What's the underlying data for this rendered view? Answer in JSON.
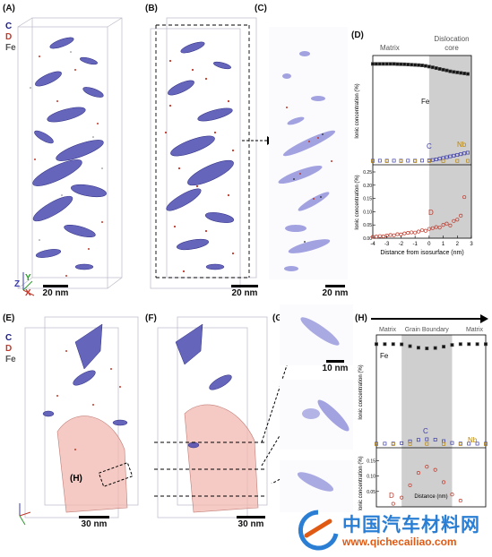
{
  "panels": {
    "A": "(A)",
    "B": "(B)",
    "C": "(C)",
    "D": "(D)",
    "E": "(E)",
    "F": "(F)",
    "G": "(G)",
    "H": "(H)"
  },
  "legend": {
    "c": "C",
    "d": "D",
    "fe": "Fe"
  },
  "axes_triad": {
    "z": "Z",
    "x": "X",
    "y": "Y"
  },
  "scale_bars": {
    "a": "20 nm",
    "b": "20 nm",
    "c": "20 nm",
    "e": "30 nm",
    "f": "30 nm",
    "g": "10 nm"
  },
  "roi_label": "(H)",
  "colors": {
    "carbon": "#3c3ca6",
    "deuterium": "#c0392b",
    "iron": "#444444",
    "niobium": "#b8860b",
    "core_shade": "#cfcfcf",
    "gb_shade": "#cfcfcf"
  },
  "chart_data": [
    {
      "type": "scatter",
      "panel": "D",
      "region_labels": [
        "Matrix",
        "Dislocation core"
      ],
      "top": {
        "ylabel": "Ionic concentration (%)",
        "series": [
          {
            "name": "Fe",
            "x": [
              -4,
              -3.75,
              -3.5,
              -3.25,
              -3,
              -2.75,
              -2.5,
              -2.25,
              -2,
              -1.75,
              -1.5,
              -1.25,
              -1,
              -0.75,
              -0.5,
              -0.25,
              0,
              0.25,
              0.5,
              0.75,
              1,
              1.25,
              1.5,
              1.75,
              2,
              2.25,
              2.5,
              2.75
            ],
            "y": [
              97,
              97,
              97,
              97,
              97,
              97,
              97,
              96.8,
              96.7,
              96.6,
              96.4,
              96.2,
              96,
              95.8,
              95.5,
              95,
              94.3,
              93.6,
              92.8,
              92,
              91.2,
              90.5,
              89.6,
              89,
              88.5,
              88,
              87.5,
              87
            ]
          },
          {
            "name": "C",
            "x": [
              -4,
              -3.5,
              -3,
              -2.5,
              -2,
              -1.5,
              -1,
              -0.5,
              0,
              0.25,
              0.5,
              0.75,
              1,
              1.25,
              1.5,
              1.75,
              2,
              2.25,
              2.5,
              2.75
            ],
            "y": [
              0.5,
              0.5,
              0.5,
              0.5,
              0.5,
              0.5,
              0.5,
              0.6,
              0.8,
              1.2,
              1.8,
              2.5,
              3.2,
              4,
              4.8,
              5.5,
              6.2,
              7,
              7.8,
              8.5
            ]
          },
          {
            "name": "Nb",
            "x": [
              -4,
              -3,
              -2,
              -1,
              0,
              1,
              2,
              2.75
            ],
            "y": [
              0.1,
              0.1,
              0.1,
              0.1,
              0.15,
              0.2,
              0.3,
              0.35
            ]
          }
        ]
      },
      "bottom": {
        "ylabel": "Ionic concentration (%)",
        "xlabel": "Distance from isosurface (nm)",
        "xticks": [
          "-4",
          "-3",
          "-2",
          "-1",
          "0",
          "1",
          "2",
          "3"
        ],
        "yticks": [
          "0.00",
          "0.05",
          "0.10",
          "0.15",
          "0.20",
          "0.25"
        ],
        "series": [
          {
            "name": "D",
            "x": [
              -4,
              -3.75,
              -3.5,
              -3.25,
              -3,
              -2.75,
              -2.5,
              -2.25,
              -2,
              -1.75,
              -1.5,
              -1.25,
              -1,
              -0.75,
              -0.5,
              -0.25,
              0,
              0.25,
              0.5,
              0.75,
              1,
              1.25,
              1.5,
              1.75,
              2,
              2.25,
              2.5
            ],
            "y": [
              0.005,
              0.006,
              0.008,
              0.007,
              0.01,
              0.012,
              0.011,
              0.015,
              0.014,
              0.018,
              0.02,
              0.022,
              0.021,
              0.025,
              0.03,
              0.028,
              0.035,
              0.038,
              0.042,
              0.04,
              0.05,
              0.055,
              0.048,
              0.065,
              0.07,
              0.085,
              0.155
            ]
          }
        ]
      }
    },
    {
      "type": "scatter",
      "panel": "H",
      "region_labels": [
        "Matrix",
        "Grain Boundary",
        "Matrix"
      ],
      "top": {
        "ylabel": "Ionic concentration (%)",
        "series": [
          {
            "name": "Fe",
            "x": [
              -5,
              -4,
              -3,
              -2,
              -1,
              0,
              1,
              2,
              3,
              4,
              5,
              6,
              7,
              8
            ],
            "y": [
              98,
              98,
              98,
              97.8,
              96,
              94.5,
              93.8,
              94.2,
              95.5,
              97.2,
              98,
              98,
              98,
              98
            ]
          },
          {
            "name": "C",
            "x": [
              -5,
              -4,
              -3,
              -2,
              -1,
              0,
              1,
              2,
              3,
              4,
              5,
              6,
              7,
              8
            ],
            "y": [
              0.5,
              0.5,
              0.6,
              1,
              2.8,
              4.2,
              4.8,
              4.4,
              3,
              1.2,
              0.6,
              0.5,
              0.5,
              0.5
            ]
          },
          {
            "name": "Nb",
            "x": [
              -5,
              -3,
              -1,
              1,
              3,
              5,
              8
            ],
            "y": [
              0.1,
              0.1,
              0.2,
              0.3,
              0.2,
              0.1,
              0.1
            ]
          }
        ]
      },
      "bottom": {
        "ylabel": "Ionic concentration (%)",
        "xlabel": "Distance (nm)",
        "yticks": [
          "0.05",
          "0.10",
          "0.15"
        ],
        "series": [
          {
            "name": "D",
            "x": [
              -3,
              -2,
              -1,
              0,
              1,
              2,
              3,
              4,
              5
            ],
            "y": [
              0.01,
              0.03,
              0.07,
              0.11,
              0.13,
              0.12,
              0.08,
              0.04,
              0.02
            ]
          }
        ]
      }
    }
  ],
  "watermark": {
    "logo_text": "中国汽车材料网",
    "url": "www.qichecailiao.com"
  }
}
